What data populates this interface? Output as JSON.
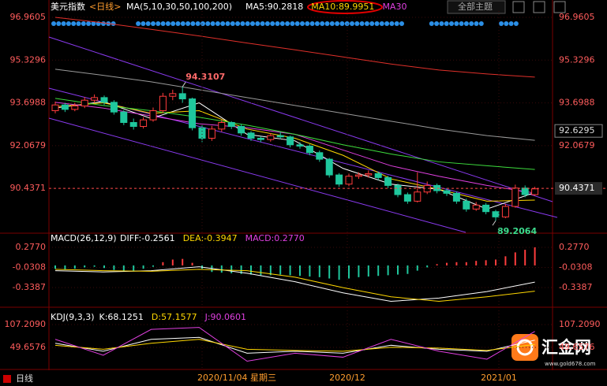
{
  "chart_data": [
    {
      "type": "candlestick",
      "title": "美元指数",
      "subtitle": "<日线>",
      "indicator": "MA(5,10,30,50,100,200)",
      "open": [
        93.4,
        93.62,
        93.45,
        93.58,
        93.8,
        93.9,
        93.72,
        93.35,
        92.95,
        92.8,
        93.05,
        93.4,
        93.95,
        94.05,
        93.85,
        92.75,
        92.35,
        92.7,
        92.95,
        92.8,
        92.55,
        92.35,
        92.3,
        92.45,
        92.4,
        92.1,
        92.05,
        91.8,
        91.55,
        90.95,
        90.6,
        90.9,
        90.95,
        91.0,
        90.85,
        90.55,
        90.2,
        89.95,
        90.3,
        90.55,
        90.35,
        90.25,
        89.95,
        89.65,
        89.8,
        89.55,
        89.35,
        89.75,
        90.45,
        90.2
      ],
      "high": [
        93.75,
        93.7,
        93.7,
        93.92,
        94.02,
        93.98,
        93.8,
        93.42,
        93.1,
        93.15,
        93.52,
        94.08,
        94.2,
        94.3107,
        93.9,
        92.85,
        92.82,
        93.05,
        93.0,
        92.88,
        92.62,
        92.42,
        92.55,
        92.58,
        92.45,
        92.2,
        92.12,
        91.88,
        91.6,
        91.02,
        91.0,
        91.05,
        91.12,
        91.08,
        90.92,
        90.62,
        90.28,
        91.05,
        90.7,
        90.62,
        90.45,
        90.32,
        90.05,
        89.92,
        89.88,
        89.62,
        89.85,
        90.58,
        90.55,
        90.5
      ],
      "low": [
        93.3,
        93.35,
        93.38,
        93.5,
        93.7,
        93.62,
        93.25,
        92.85,
        92.68,
        92.72,
        92.98,
        93.32,
        93.8,
        93.7,
        92.65,
        92.2,
        92.25,
        92.6,
        92.7,
        92.45,
        92.25,
        92.2,
        92.22,
        92.32,
        92.0,
        91.95,
        91.7,
        91.45,
        90.85,
        90.5,
        90.52,
        90.8,
        90.85,
        90.75,
        90.45,
        90.1,
        89.85,
        89.9,
        90.22,
        90.25,
        90.15,
        89.85,
        89.55,
        89.58,
        89.45,
        89.2064,
        89.3,
        89.7,
        90.1,
        90.15
      ],
      "close": [
        93.62,
        93.45,
        93.58,
        93.8,
        93.9,
        93.72,
        93.35,
        92.95,
        92.8,
        93.05,
        93.4,
        93.95,
        94.05,
        93.85,
        92.75,
        92.35,
        92.7,
        92.95,
        92.8,
        92.55,
        92.35,
        92.3,
        92.45,
        92.4,
        92.1,
        92.05,
        91.8,
        91.55,
        90.95,
        90.6,
        90.9,
        90.95,
        91.0,
        90.85,
        90.55,
        90.2,
        89.95,
        90.3,
        90.55,
        90.35,
        90.25,
        89.95,
        89.65,
        89.8,
        89.55,
        89.35,
        89.75,
        90.45,
        90.2,
        90.42
      ],
      "up_color": "#ff3c3c",
      "down_color": "#1fc79d",
      "series": [
        {
          "name": "MA5:90.2818",
          "color": "#ffffff",
          "values": [
            93.5,
            93.75,
            93.1,
            93.7,
            92.5,
            92.25,
            91.2,
            90.6,
            90.4,
            89.65,
            90.28
          ]
        },
        {
          "name": "MA10:89.9951",
          "color": "#ffd700",
          "values": [
            93.55,
            93.7,
            93.3,
            93.4,
            92.7,
            92.35,
            91.7,
            90.8,
            90.4,
            89.95,
            89.99
          ]
        },
        {
          "name": "MA30",
          "color": "#e040e0",
          "values": [
            93.72,
            93.5,
            93.2,
            92.9,
            92.75,
            92.5,
            91.9,
            91.3,
            90.9,
            90.55,
            90.26
          ]
        },
        {
          "color": "#3ddc3d",
          "values": [
            93.87,
            93.6,
            93.4,
            93.15,
            92.85,
            92.5,
            92.1,
            91.75,
            91.45,
            91.3,
            91.16
          ]
        },
        {
          "color": "#9a9a9a",
          "values": [
            94.98,
            94.75,
            94.5,
            94.2,
            93.9,
            93.6,
            93.3,
            93.0,
            92.7,
            92.45,
            92.27
          ]
        },
        {
          "color": "#e0302a",
          "values": [
            96.96,
            96.75,
            96.5,
            96.25,
            95.98,
            95.72,
            95.45,
            95.18,
            94.95,
            94.8,
            94.68
          ]
        }
      ],
      "high_label": 94.3107,
      "low_label": 89.2064,
      "marked_price": 92.6295,
      "last_price": 90.4371,
      "x_labels": [
        "2020/11/04 星期三",
        "2020/12",
        "2021/01"
      ],
      "ylim": [
        88.76,
        97.2
      ],
      "yticks": [
        96.9605,
        95.3296,
        93.6988,
        92.0679,
        90.4371
      ]
    },
    {
      "type": "macd",
      "title": "MACD(26,12,9)",
      "bar_name": "MACD:0.2770",
      "bar_name_color": "#e040e0",
      "values": [
        -0.05,
        -0.06,
        -0.05,
        -0.03,
        -0.02,
        -0.04,
        -0.07,
        -0.09,
        -0.08,
        -0.05,
        -0.02,
        0.05,
        0.09,
        0.1,
        0.04,
        -0.05,
        -0.1,
        -0.11,
        -0.12,
        -0.13,
        -0.14,
        -0.15,
        -0.15,
        -0.14,
        -0.15,
        -0.16,
        -0.17,
        -0.18,
        -0.2,
        -0.22,
        -0.2,
        -0.18,
        -0.17,
        -0.16,
        -0.15,
        -0.14,
        -0.13,
        -0.08,
        -0.03,
        0.02,
        0.04,
        0.05,
        0.05,
        0.07,
        0.08,
        0.09,
        0.14,
        0.2,
        0.24,
        0.277
      ],
      "up_color": "#ff3c3c",
      "down_color": "#1fc79d",
      "series": [
        {
          "name": "DIFF:-0.2561",
          "color": "#ffffff",
          "values": [
            -0.08,
            -0.1,
            -0.08,
            -0.02,
            -0.12,
            -0.25,
            -0.42,
            -0.55,
            -0.5,
            -0.4,
            -0.2561
          ]
        },
        {
          "name": "DEA:-0.3947",
          "color": "#ffd700",
          "values": [
            -0.06,
            -0.08,
            -0.09,
            -0.06,
            -0.08,
            -0.18,
            -0.34,
            -0.48,
            -0.55,
            -0.48,
            -0.3947
          ]
        }
      ],
      "ylim": [
        -0.616,
        0.47
      ],
      "yticks": [
        {
          "value": 0.277,
          "label": "0.2770"
        },
        -0.0308,
        -0.3387
      ]
    },
    {
      "type": "line",
      "title": "KDJ(9,3,3)",
      "series": [
        {
          "name": "K:68.1251",
          "color": "#ffffff",
          "values": [
            60,
            40,
            70,
            75,
            35,
            40,
            35,
            55,
            45,
            40,
            68.1251
          ]
        },
        {
          "name": "D:57.1577",
          "color": "#ffd700",
          "values": [
            55,
            45,
            60,
            70,
            45,
            42,
            40,
            50,
            48,
            42,
            57.1577
          ]
        },
        {
          "name": "J:90.0601",
          "color": "#e040e0",
          "values": [
            70,
            30,
            95,
            100,
            15,
            35,
            25,
            70,
            40,
            20,
            90.0601
          ]
        }
      ],
      "ylim": [
        -3.9,
        146.9
      ],
      "yticks": [
        {
          "value": 107.209,
          "label": "107.2090"
        },
        49.6576
      ]
    }
  ],
  "toolbar": {
    "theme_button": "全部主题"
  },
  "footer": {
    "period": "日线"
  },
  "logo": {
    "name": "汇金网",
    "url": "www.gold678.com"
  }
}
